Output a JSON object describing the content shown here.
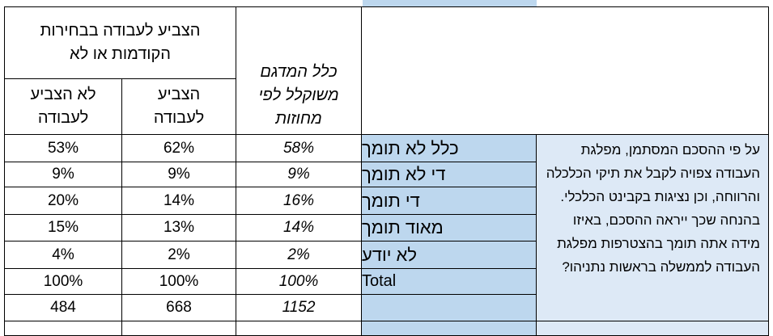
{
  "header": {
    "group_title": "הצביע לעבודה בבחירות הקודמות או לא",
    "col_no_vote": "לא הצביע לעבודה",
    "col_voted": "הצביע לעבודה",
    "col_weighted": "כלל המדגם משוקלל לפי מחוזות"
  },
  "question": "על פי ההסכם המסתמן, מפלגת העבודה צפויה לקבל את תיקי הכלכלה והרווחה, וכן נציגות בקבינט הכלכלי. בהנחה שכך ייראה ההסכם, באיזו מידה אתה תומך בהצטרפות מפלגת העבודה לממשלה בראשות נתניהו?",
  "rows": [
    {
      "label": "כלל לא תומך",
      "weighted": "58%",
      "voted": "62%",
      "no_vote": "53%"
    },
    {
      "label": "די לא תומך",
      "weighted": "9%",
      "voted": "9%",
      "no_vote": "9%"
    },
    {
      "label": "די תומך",
      "weighted": "16%",
      "voted": "14%",
      "no_vote": "20%"
    },
    {
      "label": "מאוד תומך",
      "weighted": "14%",
      "voted": "13%",
      "no_vote": "15%"
    },
    {
      "label": "לא יודע",
      "weighted": "2%",
      "voted": "2%",
      "no_vote": "4%"
    },
    {
      "label": "Total",
      "weighted": "100%",
      "voted": "100%",
      "no_vote": "100%"
    },
    {
      "label": "",
      "weighted": "1152",
      "voted": "668",
      "no_vote": "484"
    }
  ]
}
